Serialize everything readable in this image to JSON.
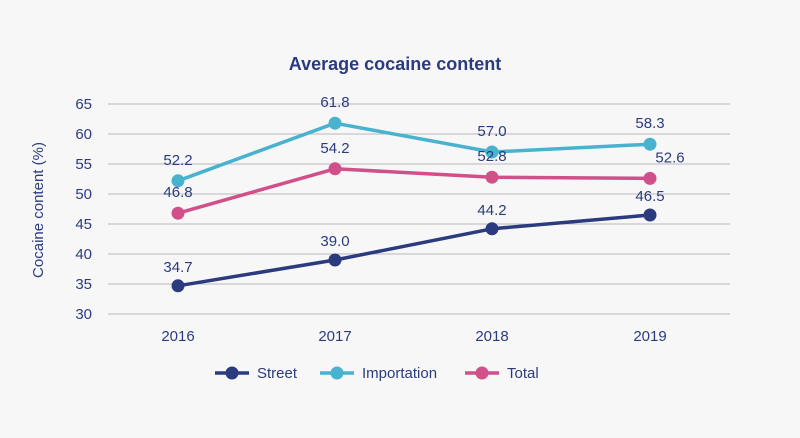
{
  "chart_data": {
    "type": "line",
    "title": "Average cocaine content",
    "xlabel": "",
    "ylabel": "Cocaine content (%)",
    "categories": [
      "2016",
      "2017",
      "2018",
      "2019"
    ],
    "ylim": [
      30,
      65
    ],
    "yticks": [
      30,
      35,
      40,
      45,
      50,
      55,
      60,
      65
    ],
    "grid": true,
    "legend_position": "bottom",
    "series": [
      {
        "name": "Street",
        "color": "#2b3b7e",
        "values": [
          34.7,
          39.0,
          44.2,
          46.5
        ],
        "labels": [
          "34.7",
          "39.0",
          "44.2",
          "46.5"
        ]
      },
      {
        "name": "Importation",
        "color": "#49b2cf",
        "values": [
          52.2,
          61.8,
          57.0,
          58.3
        ],
        "labels": [
          "52.2",
          "61.8",
          "57.0",
          "58.3"
        ]
      },
      {
        "name": "Total",
        "color": "#d1508a",
        "values": [
          46.8,
          54.2,
          52.8,
          52.6
        ],
        "labels": [
          "46.8",
          "54.2",
          "52.8",
          "52.6"
        ]
      }
    ]
  }
}
